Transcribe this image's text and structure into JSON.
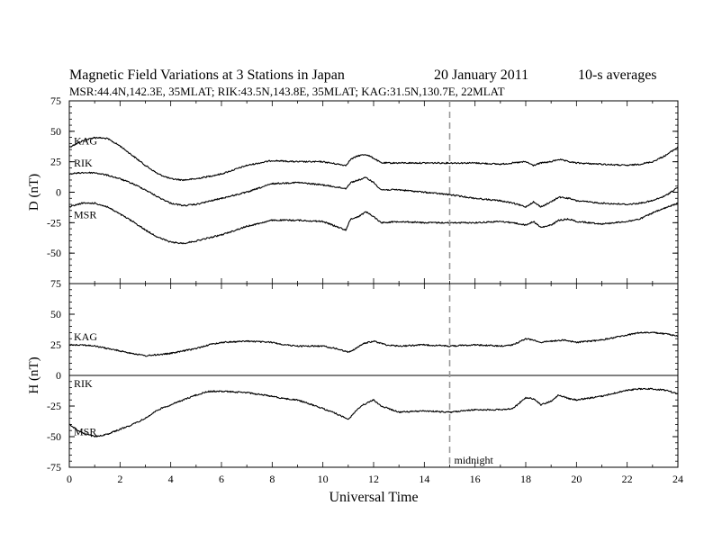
{
  "chart_data": {
    "type": "line",
    "title": "Magnetic Field Variations at 3 Stations in Japan",
    "date": "20 January 2011",
    "averaging": "10-s averages",
    "stations_line": "MSR:44.4N,142.3E, 35MLAT;  RIK:43.5N,143.8E, 35MLAT;  KAG:31.5N,130.7E, 22MLAT",
    "xlabel": "Universal Time",
    "xlim": [
      0,
      24
    ],
    "x_ticks": [
      "0",
      "2",
      "4",
      "6",
      "8",
      "10",
      "12",
      "14",
      "16",
      "18",
      "20",
      "22",
      "24"
    ],
    "marker": {
      "x": 15,
      "label": "midnight"
    },
    "panels": [
      {
        "ylabel": "D (nT)",
        "ylim": [
          -75,
          75
        ],
        "y_ticks": [
          "75",
          "50",
          "25",
          "0",
          "-25",
          "-50",
          "-75"
        ],
        "series": [
          {
            "name": "KAG",
            "points": [
              [
                0,
                37
              ],
              [
                0.5,
                42
              ],
              [
                1,
                45
              ],
              [
                1.5,
                44
              ],
              [
                2,
                38
              ],
              [
                2.5,
                30
              ],
              [
                3,
                22
              ],
              [
                3.5,
                15
              ],
              [
                4,
                11
              ],
              [
                4.5,
                10
              ],
              [
                5,
                11
              ],
              [
                6,
                15
              ],
              [
                7,
                22
              ],
              [
                8,
                26
              ],
              [
                9,
                25
              ],
              [
                10,
                25
              ],
              [
                10.9,
                22
              ],
              [
                11.1,
                27
              ],
              [
                11.4,
                30
              ],
              [
                11.7,
                31
              ],
              [
                12,
                28
              ],
              [
                12.3,
                24
              ],
              [
                13,
                24
              ],
              [
                14,
                24
              ],
              [
                15,
                24
              ],
              [
                16,
                24
              ],
              [
                17,
                23
              ],
              [
                17.5,
                24
              ],
              [
                18,
                25
              ],
              [
                18.3,
                22
              ],
              [
                18.6,
                24
              ],
              [
                19,
                25
              ],
              [
                19.3,
                27
              ],
              [
                19.7,
                25
              ],
              [
                20,
                24
              ],
              [
                21,
                23
              ],
              [
                22,
                22
              ],
              [
                22.5,
                23
              ],
              [
                23,
                25
              ],
              [
                23.5,
                30
              ],
              [
                24,
                37
              ]
            ]
          },
          {
            "name": "RIK",
            "points": [
              [
                0,
                15
              ],
              [
                0.5,
                16
              ],
              [
                1,
                16
              ],
              [
                1.5,
                14
              ],
              [
                2,
                11
              ],
              [
                2.5,
                7
              ],
              [
                3,
                2
              ],
              [
                3.5,
                -4
              ],
              [
                4,
                -9
              ],
              [
                4.5,
                -11
              ],
              [
                5,
                -10
              ],
              [
                6,
                -5
              ],
              [
                7,
                0
              ],
              [
                8,
                7
              ],
              [
                9,
                8
              ],
              [
                10,
                6
              ],
              [
                10.9,
                3
              ],
              [
                11.1,
                8
              ],
              [
                11.4,
                10
              ],
              [
                11.7,
                12
              ],
              [
                12,
                8
              ],
              [
                12.3,
                2
              ],
              [
                13,
                2
              ],
              [
                14,
                0
              ],
              [
                15,
                -2
              ],
              [
                16,
                -5
              ],
              [
                17,
                -7
              ],
              [
                17.5,
                -9
              ],
              [
                18,
                -12
              ],
              [
                18.3,
                -8
              ],
              [
                18.6,
                -12
              ],
              [
                19,
                -8
              ],
              [
                19.3,
                -4
              ],
              [
                19.7,
                -5
              ],
              [
                20,
                -7
              ],
              [
                21,
                -9
              ],
              [
                22,
                -10
              ],
              [
                22.5,
                -9
              ],
              [
                23,
                -7
              ],
              [
                23.5,
                -3
              ],
              [
                24,
                4
              ]
            ]
          },
          {
            "name": "MSR",
            "points": [
              [
                0,
                -12
              ],
              [
                0.5,
                -9
              ],
              [
                1,
                -9
              ],
              [
                1.5,
                -12
              ],
              [
                2,
                -18
              ],
              [
                2.5,
                -24
              ],
              [
                3,
                -31
              ],
              [
                3.5,
                -37
              ],
              [
                4,
                -41
              ],
              [
                4.5,
                -42
              ],
              [
                5,
                -40
              ],
              [
                6,
                -35
              ],
              [
                7,
                -28
              ],
              [
                8,
                -23
              ],
              [
                9,
                -23
              ],
              [
                10,
                -24
              ],
              [
                10.9,
                -31
              ],
              [
                11.1,
                -22
              ],
              [
                11.4,
                -20
              ],
              [
                11.7,
                -16
              ],
              [
                12,
                -20
              ],
              [
                12.3,
                -25
              ],
              [
                13,
                -24
              ],
              [
                14,
                -25
              ],
              [
                15,
                -25
              ],
              [
                16,
                -25
              ],
              [
                17,
                -24
              ],
              [
                17.5,
                -25
              ],
              [
                18,
                -27
              ],
              [
                18.3,
                -24
              ],
              [
                18.6,
                -29
              ],
              [
                19,
                -27
              ],
              [
                19.3,
                -23
              ],
              [
                19.7,
                -22
              ],
              [
                20,
                -24
              ],
              [
                21,
                -26
              ],
              [
                22,
                -24
              ],
              [
                22.5,
                -22
              ],
              [
                23,
                -17
              ],
              [
                23.5,
                -13
              ],
              [
                24,
                -9
              ]
            ]
          }
        ]
      },
      {
        "ylabel": "H (nT)",
        "ylim": [
          -75,
          75
        ],
        "y_ticks": [
          "75",
          "50",
          "25",
          "0",
          "-25",
          "-50",
          "-75"
        ],
        "series": [
          {
            "name": "KAG",
            "points": [
              [
                0,
                25
              ],
              [
                0.5,
                25
              ],
              [
                1,
                24
              ],
              [
                1.5,
                22
              ],
              [
                2,
                20
              ],
              [
                2.5,
                18
              ],
              [
                3,
                16
              ],
              [
                3.5,
                17
              ],
              [
                4,
                18
              ],
              [
                4.5,
                20
              ],
              [
                5,
                22
              ],
              [
                5.5,
                25
              ],
              [
                6,
                27
              ],
              [
                7,
                28
              ],
              [
                8,
                27
              ],
              [
                8.5,
                25
              ],
              [
                9,
                24
              ],
              [
                10,
                24
              ],
              [
                10.5,
                22
              ],
              [
                11,
                19
              ],
              [
                11.3,
                22
              ],
              [
                11.6,
                26
              ],
              [
                12,
                28
              ],
              [
                12.5,
                25
              ],
              [
                13,
                24
              ],
              [
                14,
                25
              ],
              [
                15,
                24
              ],
              [
                16,
                25
              ],
              [
                17,
                24
              ],
              [
                17.5,
                25
              ],
              [
                18,
                30
              ],
              [
                18.3,
                29
              ],
              [
                18.6,
                27
              ],
              [
                19,
                28
              ],
              [
                19.5,
                29
              ],
              [
                20,
                27
              ],
              [
                21,
                29
              ],
              [
                22,
                33
              ],
              [
                22.5,
                35
              ],
              [
                23,
                35
              ],
              [
                23.5,
                34
              ],
              [
                24,
                32
              ]
            ]
          },
          {
            "name": "RIK",
            "points": [
              [
                0,
                0
              ],
              [
                24,
                0
              ]
            ]
          },
          {
            "name": "MSR",
            "points": [
              [
                0,
                -40
              ],
              [
                0.5,
                -47
              ],
              [
                1,
                -50
              ],
              [
                1.5,
                -48
              ],
              [
                2,
                -44
              ],
              [
                2.5,
                -40
              ],
              [
                3,
                -35
              ],
              [
                3.5,
                -28
              ],
              [
                4,
                -24
              ],
              [
                4.5,
                -20
              ],
              [
                5,
                -16
              ],
              [
                5.5,
                -13
              ],
              [
                6,
                -13
              ],
              [
                7,
                -14
              ],
              [
                8,
                -17
              ],
              [
                8.5,
                -19
              ],
              [
                9,
                -20
              ],
              [
                10,
                -27
              ],
              [
                10.5,
                -31
              ],
              [
                11,
                -36
              ],
              [
                11.3,
                -29
              ],
              [
                11.6,
                -24
              ],
              [
                12,
                -20
              ],
              [
                12.3,
                -25
              ],
              [
                13,
                -30
              ],
              [
                14,
                -29
              ],
              [
                15,
                -30
              ],
              [
                16,
                -28
              ],
              [
                17,
                -28
              ],
              [
                17.5,
                -27
              ],
              [
                18,
                -18
              ],
              [
                18.3,
                -19
              ],
              [
                18.6,
                -24
              ],
              [
                19,
                -21
              ],
              [
                19.3,
                -16
              ],
              [
                19.7,
                -19
              ],
              [
                20,
                -20
              ],
              [
                21,
                -17
              ],
              [
                22,
                -12
              ],
              [
                22.5,
                -11
              ],
              [
                23,
                -11
              ],
              [
                23.5,
                -12
              ],
              [
                24,
                -15
              ]
            ]
          }
        ]
      }
    ]
  }
}
